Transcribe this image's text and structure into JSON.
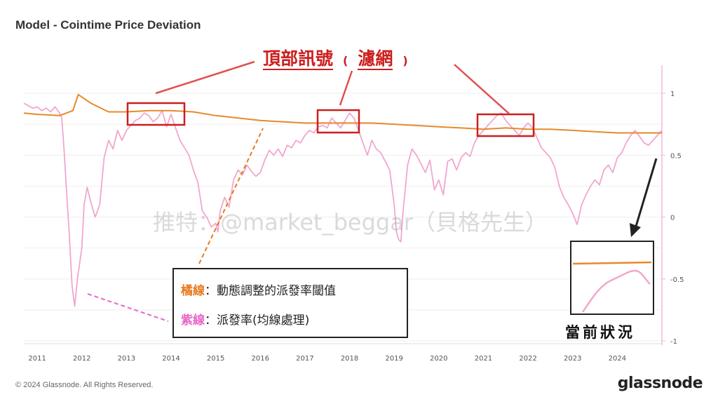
{
  "header": {
    "title": "Model - Cointime Price Deviation"
  },
  "footer": {
    "copyright": "© 2024 Glassnode. All Rights Reserved.",
    "brand": "glassnode"
  },
  "watermark": {
    "text": "推特：@market_beggar（貝格先生）"
  },
  "annotations": {
    "top_signal_title": "頂部訊號",
    "top_signal_paren_open": "(",
    "top_signal_filter": "濾網",
    "top_signal_paren_close": ")",
    "legend_orange_name": "橘線",
    "legend_orange_desc": "：動態調整的派發率閾值",
    "legend_pink_name": "紫線",
    "legend_pink_desc": "：派發率(均線處理)",
    "current_status": "當前狀況"
  },
  "colors": {
    "threshold": "#e8892b",
    "deviation": "#f2a6cf",
    "annotation_red": "#cc1f1f",
    "dashed_orange": "#e87a1f",
    "dashed_pink": "#e866c8",
    "right_axis": "#f0b8e0"
  },
  "chart_data": {
    "type": "line",
    "title": "Model - Cointime Price Deviation",
    "x_tick_labels": [
      "2011",
      "2012",
      "2013",
      "2014",
      "2015",
      "2016",
      "2017",
      "2018",
      "2019",
      "2020",
      "2021",
      "2022",
      "2023",
      "2024"
    ],
    "y_tick_labels": [
      "1",
      "0.5",
      "0",
      "-0.5",
      "-1"
    ],
    "ylim": [
      -1,
      1
    ],
    "xlim": [
      2010.7,
      2025.0
    ],
    "grid": true,
    "series": [
      {
        "key": "threshold",
        "x": [
          2010.7,
          2011.0,
          2011.5,
          2011.8,
          2011.92,
          2012.2,
          2012.6,
          2013.0,
          2013.5,
          2014.0,
          2014.5,
          2015.0,
          2015.5,
          2016.0,
          2016.5,
          2017.0,
          2017.5,
          2018.0,
          2018.5,
          2019.0,
          2019.5,
          2020.0,
          2020.5,
          2021.0,
          2021.5,
          2022.0,
          2022.5,
          2023.0,
          2023.5,
          2024.0,
          2024.5,
          2025.0
        ],
        "y": [
          0.84,
          0.83,
          0.82,
          0.86,
          0.99,
          0.92,
          0.85,
          0.85,
          0.86,
          0.86,
          0.85,
          0.82,
          0.8,
          0.78,
          0.77,
          0.76,
          0.76,
          0.76,
          0.76,
          0.75,
          0.74,
          0.73,
          0.72,
          0.71,
          0.72,
          0.71,
          0.71,
          0.7,
          0.69,
          0.68,
          0.68,
          0.68
        ]
      },
      {
        "key": "deviation",
        "x": [
          2010.7,
          2010.8,
          2010.9,
          2011.0,
          2011.1,
          2011.2,
          2011.3,
          2011.4,
          2011.5,
          2011.55,
          2011.6,
          2011.65,
          2011.72,
          2011.78,
          2011.84,
          2011.9,
          2012.0,
          2012.05,
          2012.12,
          2012.2,
          2012.3,
          2012.4,
          2012.5,
          2012.6,
          2012.7,
          2012.8,
          2012.9,
          2013.0,
          2013.1,
          2013.2,
          2013.3,
          2013.4,
          2013.5,
          2013.6,
          2013.7,
          2013.8,
          2013.9,
          2014.0,
          2014.1,
          2014.2,
          2014.3,
          2014.4,
          2014.5,
          2014.6,
          2014.7,
          2014.8,
          2014.9,
          2015.0,
          2015.05,
          2015.1,
          2015.2,
          2015.3,
          2015.4,
          2015.5,
          2015.6,
          2015.7,
          2015.8,
          2015.9,
          2016.0,
          2016.1,
          2016.2,
          2016.3,
          2016.4,
          2016.5,
          2016.6,
          2016.7,
          2016.8,
          2016.9,
          2017.0,
          2017.1,
          2017.2,
          2017.3,
          2017.4,
          2017.5,
          2017.6,
          2017.7,
          2017.8,
          2017.9,
          2018.0,
          2018.1,
          2018.2,
          2018.3,
          2018.4,
          2018.5,
          2018.6,
          2018.7,
          2018.8,
          2018.9,
          2019.0,
          2019.05,
          2019.1,
          2019.15,
          2019.2,
          2019.3,
          2019.4,
          2019.5,
          2019.6,
          2019.7,
          2019.8,
          2019.9,
          2020.0,
          2020.1,
          2020.2,
          2020.3,
          2020.4,
          2020.5,
          2020.6,
          2020.7,
          2020.8,
          2020.9,
          2021.0,
          2021.1,
          2021.2,
          2021.3,
          2021.4,
          2021.5,
          2021.6,
          2021.7,
          2021.8,
          2021.9,
          2022.0,
          2022.1,
          2022.2,
          2022.3,
          2022.4,
          2022.5,
          2022.6,
          2022.7,
          2022.8,
          2022.9,
          2023.0,
          2023.1,
          2023.2,
          2023.3,
          2023.4,
          2023.5,
          2023.6,
          2023.7,
          2023.8,
          2023.9,
          2024.0,
          2024.1,
          2024.2,
          2024.3,
          2024.4,
          2024.5,
          2024.6,
          2024.7,
          2024.8,
          2024.9,
          2025.0
        ],
        "y": [
          0.92,
          0.9,
          0.88,
          0.89,
          0.86,
          0.88,
          0.85,
          0.89,
          0.84,
          0.8,
          0.55,
          0.25,
          -0.15,
          -0.55,
          -0.72,
          -0.5,
          -0.25,
          0.1,
          0.24,
          0.12,
          0.0,
          0.1,
          0.48,
          0.62,
          0.55,
          0.7,
          0.62,
          0.7,
          0.74,
          0.78,
          0.8,
          0.84,
          0.82,
          0.77,
          0.8,
          0.86,
          0.73,
          0.83,
          0.72,
          0.62,
          0.56,
          0.5,
          0.38,
          0.28,
          0.05,
          0.0,
          -0.08,
          -0.05,
          -0.12,
          0.05,
          0.16,
          0.08,
          0.3,
          0.38,
          0.34,
          0.42,
          0.37,
          0.33,
          0.36,
          0.46,
          0.54,
          0.5,
          0.55,
          0.49,
          0.58,
          0.56,
          0.62,
          0.6,
          0.66,
          0.7,
          0.68,
          0.73,
          0.74,
          0.72,
          0.8,
          0.76,
          0.72,
          0.78,
          0.84,
          0.8,
          0.7,
          0.6,
          0.5,
          0.62,
          0.55,
          0.52,
          0.45,
          0.38,
          0.1,
          -0.12,
          -0.18,
          -0.2,
          0.05,
          0.42,
          0.55,
          0.5,
          0.43,
          0.36,
          0.46,
          0.22,
          0.3,
          0.18,
          0.45,
          0.47,
          0.38,
          0.48,
          0.52,
          0.49,
          0.6,
          0.66,
          0.7,
          0.74,
          0.78,
          0.82,
          0.84,
          0.78,
          0.74,
          0.7,
          0.66,
          0.72,
          0.76,
          0.72,
          0.64,
          0.56,
          0.52,
          0.48,
          0.4,
          0.25,
          0.16,
          0.1,
          0.03,
          -0.06,
          0.1,
          0.18,
          0.25,
          0.3,
          0.26,
          0.38,
          0.42,
          0.36,
          0.48,
          0.52,
          0.6,
          0.66,
          0.7,
          0.65,
          0.6,
          0.58,
          0.62,
          0.66,
          0.7
        ]
      }
    ]
  }
}
